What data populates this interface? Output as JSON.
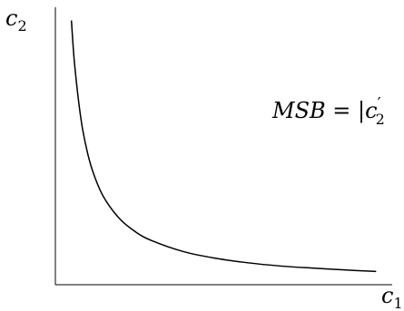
{
  "chart_data": {
    "type": "line",
    "title": "",
    "xlabel": {
      "base": "c",
      "sub": "1"
    },
    "ylabel": {
      "base": "c",
      "sub": "2"
    },
    "annotation": {
      "lhs": "MSB",
      "op": " = ",
      "rhs_base": "|c",
      "rhs_prime": "′",
      "rhs_sub": "2"
    },
    "series": [
      {
        "x": [
          0.05,
          0.06,
          0.08,
          0.1,
          0.12,
          0.15,
          0.2,
          0.25,
          0.3,
          0.4,
          0.5,
          0.6,
          0.7,
          0.8,
          0.9,
          1.0
        ],
        "y": [
          1.0,
          0.833,
          0.625,
          0.5,
          0.417,
          0.333,
          0.25,
          0.2,
          0.167,
          0.125,
          0.1,
          0.083,
          0.071,
          0.063,
          0.056,
          0.05
        ]
      }
    ],
    "xlim": [
      0,
      1.05
    ],
    "ylim": [
      0,
      1.05
    ],
    "grid": false,
    "colors": {
      "axis": "#000000",
      "curve": "#000000"
    }
  }
}
